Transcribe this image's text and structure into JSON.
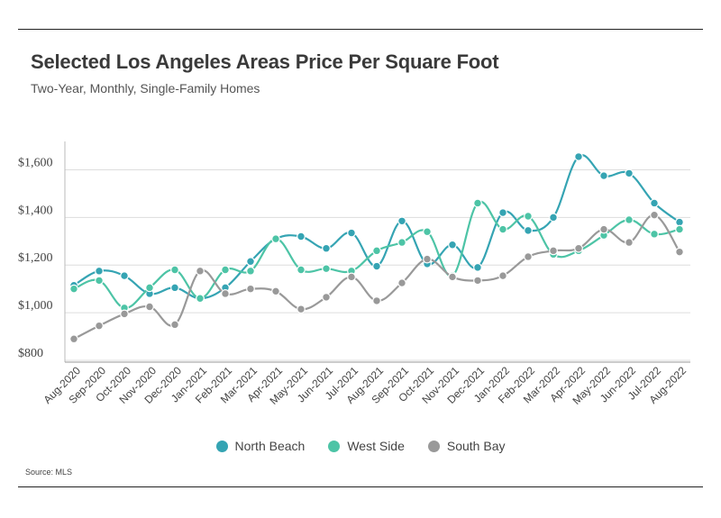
{
  "header": {
    "title": "Selected Los Angeles Areas Price Per Square Foot",
    "subtitle": "Two-Year, Monthly, Single-Family Homes"
  },
  "footer": {
    "source": "Source:  MLS"
  },
  "chart_data": {
    "type": "line",
    "title": "Selected Los Angeles Areas Price Per Square Foot",
    "subtitle": "Two-Year, Monthly, Single-Family Homes",
    "xlabel": "",
    "ylabel": "",
    "ylim": [
      800,
      1700
    ],
    "y_ticks": [
      800,
      1000,
      1200,
      1400,
      1600
    ],
    "y_tick_labels": [
      "$800",
      "$1,000",
      "$1,200",
      "$1,400",
      "$1,600"
    ],
    "grid": "horizontal",
    "legend": "bottom-center",
    "categories": [
      "Aug-2020",
      "Sep-2020",
      "Oct-2020",
      "Nov-2020",
      "Dec-2020",
      "Jan-2021",
      "Feb-2021",
      "Mar-2021",
      "Apr-2021",
      "May-2021",
      "Jun-2021",
      "Jul-2021",
      "Aug-2021",
      "Sep-2021",
      "Oct-2021",
      "Nov-2021",
      "Dec-2021",
      "Jan-2022",
      "Feb-2022",
      "Mar-2022",
      "Apr-2022",
      "May-2022",
      "Jun-2022",
      "Jul-2022",
      "Aug-2022"
    ],
    "series": [
      {
        "name": "North Beach",
        "color": "#35a4b3",
        "values": [
          1115,
          1175,
          1155,
          1080,
          1105,
          1060,
          1105,
          1215,
          1310,
          1320,
          1270,
          1335,
          1195,
          1385,
          1205,
          1285,
          1190,
          1420,
          1345,
          1400,
          1655,
          1575,
          1585,
          1460,
          1380
        ]
      },
      {
        "name": "West Side",
        "color": "#4dc4a6",
        "values": [
          1100,
          1135,
          1020,
          1105,
          1180,
          1060,
          1180,
          1175,
          1310,
          1180,
          1185,
          1175,
          1260,
          1295,
          1340,
          1155,
          1460,
          1350,
          1405,
          1245,
          1260,
          1325,
          1390,
          1330,
          1350
        ]
      },
      {
        "name": "South Bay",
        "color": "#999999",
        "values": [
          890,
          945,
          995,
          1025,
          950,
          1175,
          1080,
          1100,
          1090,
          1015,
          1065,
          1150,
          1050,
          1125,
          1225,
          1150,
          1135,
          1155,
          1235,
          1260,
          1270,
          1350,
          1295,
          1410,
          1255
        ]
      }
    ]
  }
}
